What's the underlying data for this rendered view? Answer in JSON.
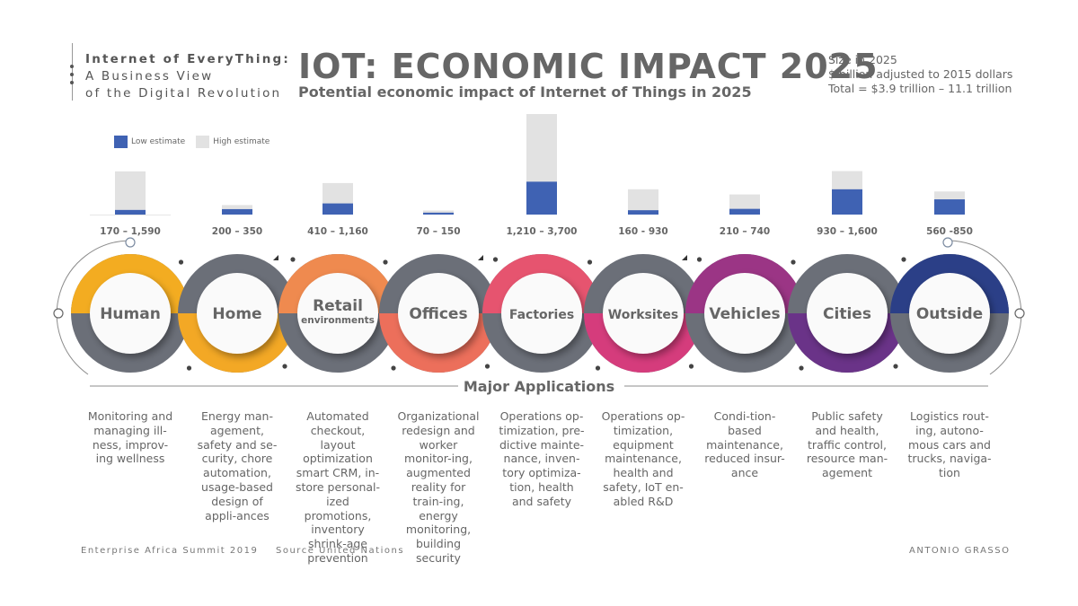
{
  "brand": {
    "line1": "Internet of EveryThing:",
    "line2": "A Business View",
    "line3": "of the Digital Revolution"
  },
  "header": {
    "title": "IOT: ECONOMIC IMPACT 2025",
    "subtitle": "Potential economic impact of Internet of Things in 2025"
  },
  "size_note": {
    "line1": "Size in 2025",
    "line2": "$ billion adjusted to 2015 dollars",
    "line3": "Total = $3.9 trillion – 11.1 trillion"
  },
  "legend": {
    "low": "Low estimate",
    "high": "High estimate"
  },
  "colors": {
    "low": "#3f62b3",
    "high": "#e2e2e2",
    "ring_gray": "#6b6f78",
    "text": "#555555"
  },
  "chart_data": {
    "type": "bar",
    "title": "IOT: ECONOMIC IMPACT 2025",
    "categories": [
      "Human",
      "Home",
      "Retail environments",
      "Offices",
      "Factories",
      "Worksites",
      "Vehicles",
      "Cities",
      "Outside"
    ],
    "series": [
      {
        "name": "Low estimate",
        "values": [
          170,
          200,
          410,
          70,
          1210,
          160,
          210,
          930,
          560
        ]
      },
      {
        "name": "High estimate",
        "values": [
          1590,
          350,
          1160,
          150,
          3700,
          930,
          740,
          1600,
          850
        ]
      }
    ],
    "range_labels": [
      "170 – 1,590",
      "200 – 350",
      "410 – 1,160",
      "70 – 150",
      "1,210 – 3,700",
      "160 - 930",
      "210 – 740",
      "930 – 1,600",
      "560 -850"
    ],
    "ylim": [
      0,
      3700
    ],
    "unit": "$ billion"
  },
  "sectors": [
    {
      "title": "Human",
      "sub": "",
      "accent": "#f3ac21"
    },
    {
      "title": "Home",
      "sub": "",
      "accent": "#f3a825"
    },
    {
      "title": "Retail",
      "sub": "environments",
      "accent": "#ef8a4f"
    },
    {
      "title": "Offices",
      "sub": "",
      "accent": "#ec6f5b"
    },
    {
      "title": "Factories",
      "sub": "",
      "accent": "#e6546f"
    },
    {
      "title": "Worksites",
      "sub": "",
      "accent": "#d53c7c"
    },
    {
      "title": "Vehicles",
      "sub": "",
      "accent": "#9b3585"
    },
    {
      "title": "Cities",
      "sub": "",
      "accent": "#6a3388"
    },
    {
      "title": "Outside",
      "sub": "",
      "accent": "#2b3f87"
    }
  ],
  "applications": {
    "title": "Major Applications",
    "items": [
      "Monitoring and managing ill-ness, improv-ing wellness",
      "Energy man-agement, safety and se-curity, chore automation, usage-based design of appli-ances",
      "Automated checkout, layout optimization smart CRM, in-store personal-ized promotions, inventory shrink-age prevention",
      "Organizational redesign and worker monitor-ing, augmented reality for train-ing, energy monitoring, building security",
      "Operations op-timization, pre-dictive mainte-nance, inven-tory optimiza-tion, health and safety",
      "Operations op-timization, equipment maintenance, health and safety, IoT en-abled R&D",
      "Condi-tion-based maintenance, reduced insur-ance",
      "Public safety and health, traffic control, resource man-agement",
      "Logistics rout-ing, autono-mous cars and trucks, naviga-tion"
    ]
  },
  "footer": {
    "event": "Enterprise Africa Summit 2019",
    "source": "Source United Nations",
    "author": "ANTONIO GRASSO"
  }
}
